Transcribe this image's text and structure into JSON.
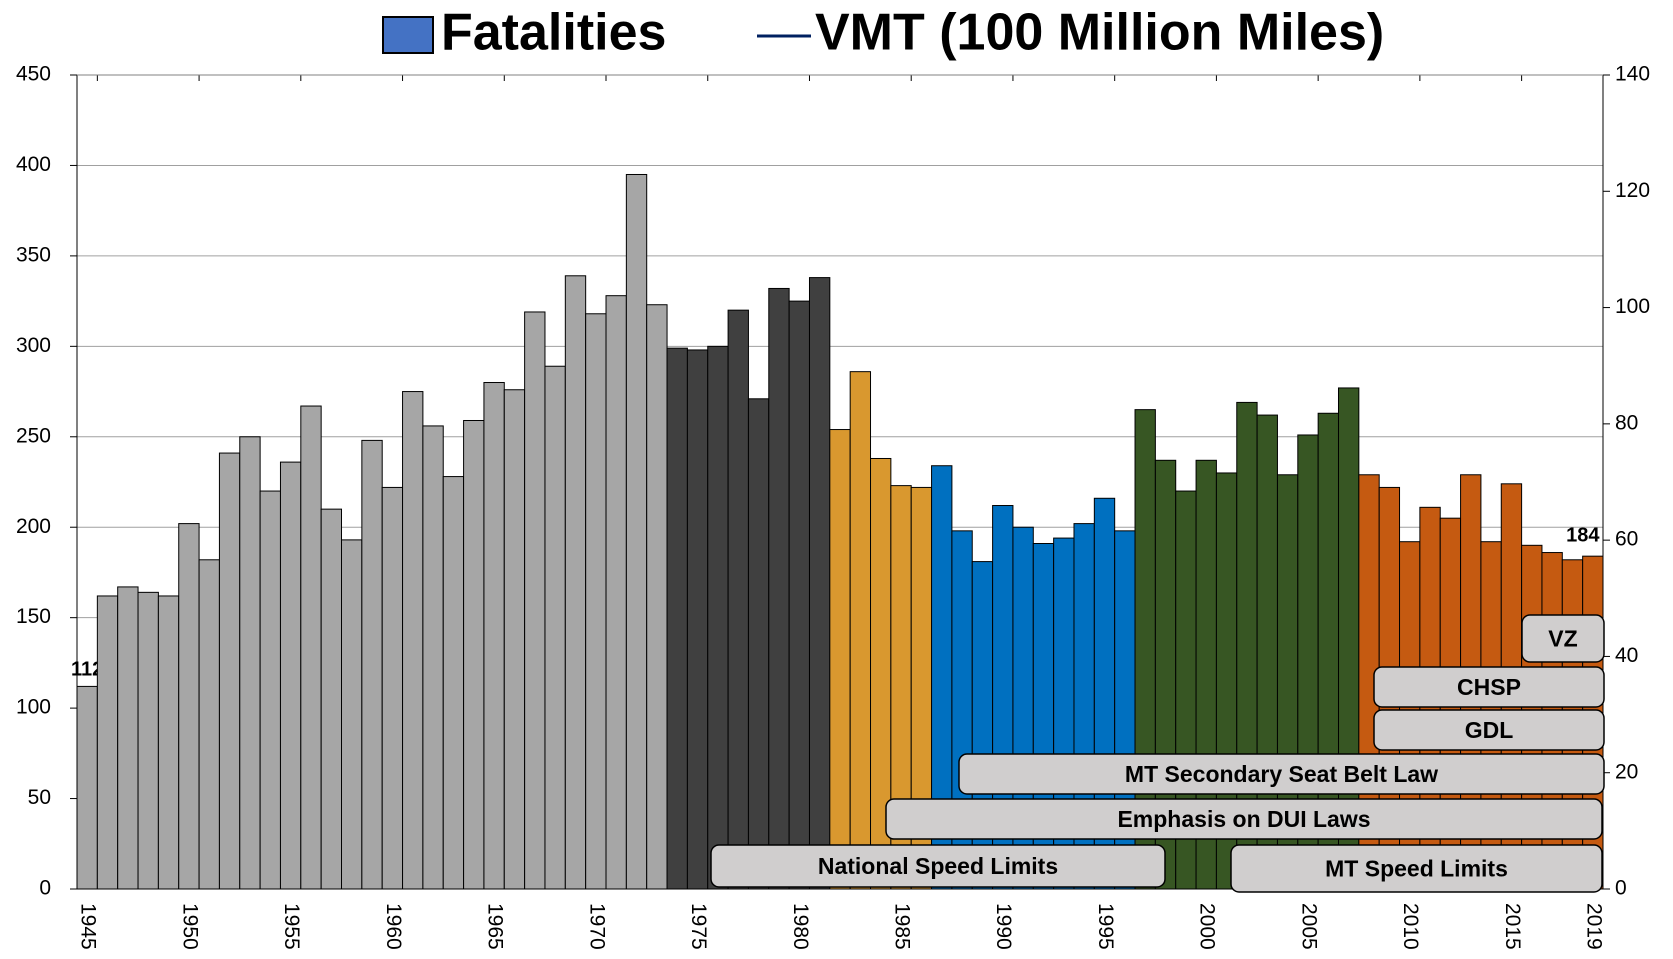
{
  "chart_data": {
    "type": "bar",
    "categories": [
      "1945",
      null,
      null,
      null,
      null,
      "1950",
      null,
      null,
      null,
      null,
      "1955",
      null,
      null,
      null,
      null,
      "1960",
      null,
      null,
      null,
      null,
      "1965",
      null,
      null,
      null,
      null,
      "1970",
      null,
      null,
      null,
      null,
      "1975",
      null,
      null,
      null,
      null,
      "1980",
      null,
      null,
      null,
      null,
      "1985",
      null,
      null,
      null,
      null,
      "1990",
      null,
      null,
      null,
      null,
      "1995",
      null,
      null,
      null,
      null,
      "2000",
      null,
      null,
      null,
      null,
      "2005",
      null,
      null,
      null,
      null,
      "2010",
      null,
      null,
      null,
      null,
      "2015",
      null,
      null,
      null,
      "2019"
    ],
    "series": [
      {
        "name": "Fatalities",
        "color": "#4472c4",
        "values": [
          112,
          162,
          167,
          164,
          162,
          202,
          182,
          241,
          250,
          220,
          236,
          267,
          210,
          193,
          248,
          222,
          275,
          256,
          228,
          259,
          280,
          276,
          319,
          289,
          339,
          318,
          328,
          395,
          323,
          299,
          298,
          300,
          320,
          271,
          332,
          325,
          338,
          254,
          286,
          238,
          223,
          222,
          234,
          198,
          181,
          212,
          200,
          191,
          194,
          202,
          216,
          198,
          265,
          237,
          220,
          237,
          230,
          269,
          262,
          229,
          251,
          263,
          277,
          229,
          222,
          192,
          211,
          205,
          229,
          192,
          224,
          190,
          186,
          182,
          184
        ],
        "value_labels": [
          "112",
          null,
          null,
          null,
          null,
          null,
          null,
          null,
          null,
          null,
          null,
          null,
          null,
          null,
          null,
          null,
          null,
          null,
          null,
          null,
          null,
          null,
          null,
          null,
          null,
          null,
          null,
          null,
          null,
          null,
          null,
          null,
          null,
          null,
          null,
          null,
          null,
          null,
          null,
          null,
          null,
          null,
          null,
          null,
          null,
          null,
          null,
          null,
          null,
          null,
          null,
          null,
          null,
          null,
          null,
          null,
          null,
          null,
          null,
          null,
          null,
          null,
          null,
          null,
          null,
          null,
          null,
          null,
          null,
          null,
          null,
          null,
          null,
          null,
          "184"
        ],
        "colors": [
          "#a6a6a6",
          "#a6a6a6",
          "#a6a6a6",
          "#a6a6a6",
          "#a6a6a6",
          "#a6a6a6",
          "#a6a6a6",
          "#a6a6a6",
          "#a6a6a6",
          "#a6a6a6",
          "#a6a6a6",
          "#a6a6a6",
          "#a6a6a6",
          "#a6a6a6",
          "#a6a6a6",
          "#a6a6a6",
          "#a6a6a6",
          "#a6a6a6",
          "#a6a6a6",
          "#a6a6a6",
          "#a6a6a6",
          "#a6a6a6",
          "#a6a6a6",
          "#a6a6a6",
          "#a6a6a6",
          "#a6a6a6",
          "#a6a6a6",
          "#a6a6a6",
          "#a6a6a6",
          "#404040",
          "#404040",
          "#404040",
          "#404040",
          "#404040",
          "#404040",
          "#404040",
          "#404040",
          "#d9982f",
          "#d9982f",
          "#d9982f",
          "#d9982f",
          "#d9982f",
          "#0070c0",
          "#0070c0",
          "#0070c0",
          "#0070c0",
          "#0070c0",
          "#0070c0",
          "#0070c0",
          "#0070c0",
          "#0070c0",
          "#0070c0",
          "#375623",
          "#375623",
          "#375623",
          "#375623",
          "#375623",
          "#375623",
          "#375623",
          "#375623",
          "#375623",
          "#375623",
          "#375623",
          "#c55a11",
          "#c55a11",
          "#c55a11",
          "#c55a11",
          "#c55a11",
          "#c55a11",
          "#c55a11",
          "#c55a11",
          "#c55a11",
          "#c55a11",
          "#c55a11",
          "#c55a11"
        ]
      },
      {
        "name": "VMT (100 Million Miles)",
        "color": "#002060",
        "axis": "y2",
        "values": [
          null,
          null,
          null,
          null,
          null,
          null,
          null,
          null,
          null,
          null,
          null,
          null,
          null,
          null,
          null,
          null,
          null,
          null,
          null,
          null,
          null,
          null,
          null,
          null,
          null,
          null,
          null,
          null,
          null,
          null,
          null,
          null,
          null,
          null,
          null,
          null,
          null,
          null,
          null,
          null,
          null,
          null,
          null,
          null,
          null,
          null,
          null,
          null,
          null,
          null,
          null,
          null,
          null,
          null,
          null,
          null,
          null,
          null,
          null,
          null,
          null,
          null,
          null,
          null,
          null,
          null,
          null,
          null,
          null,
          null,
          null,
          null,
          null,
          null,
          null
        ]
      }
    ],
    "ylim": [
      0,
      450
    ],
    "yticks": [
      0,
      50,
      100,
      150,
      200,
      250,
      300,
      350,
      400,
      450
    ],
    "y2lim": [
      0,
      140
    ],
    "y2ticks": [
      0,
      20,
      40,
      60,
      80,
      100,
      120,
      140
    ],
    "grid": true,
    "annotations": [
      "VZ",
      "CHSP",
      "GDL",
      "MT Secondary Seat Belt Law",
      "Emphasis on DUI Laws",
      "National Speed Limits",
      "MT Speed Limits"
    ]
  }
}
